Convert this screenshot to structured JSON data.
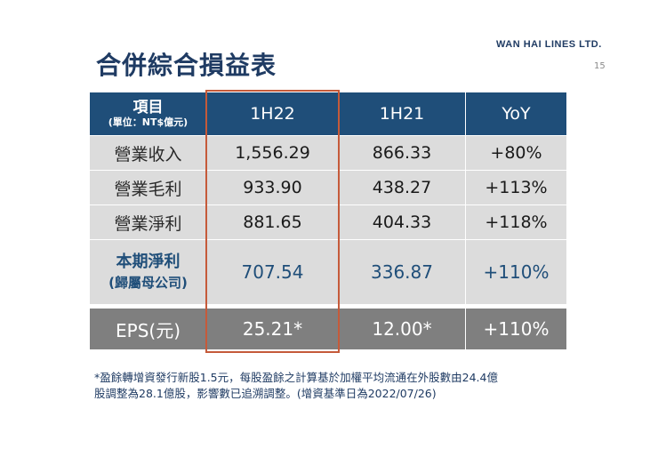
{
  "slide": {
    "title": "合併綜合損益表",
    "logo": "WAN HAI LINES LTD.",
    "page_number": "15"
  },
  "table": {
    "header": {
      "item_label": "項目",
      "item_unit": "(單位：NT$億元)",
      "col_1h22": "1H22",
      "col_1h21": "1H21",
      "col_yoy": "YoY"
    },
    "rows": [
      {
        "label": "營業收入",
        "h22": "1,556.29",
        "h21": "866.33",
        "yoy": "+80%"
      },
      {
        "label": "營業毛利",
        "h22": "933.90",
        "h21": "438.27",
        "yoy": "+113%"
      },
      {
        "label": "營業淨利",
        "h22": "881.65",
        "h21": "404.33",
        "yoy": "+118%"
      }
    ],
    "net_profit": {
      "label": "本期淨利",
      "sublabel": "(歸屬母公司)",
      "h22": "707.54",
      "h21": "336.87",
      "yoy": "+110%"
    },
    "eps": {
      "label": "EPS(元)",
      "h22": "25.21*",
      "h21": "12.00*",
      "yoy": "+110%"
    }
  },
  "footnote": {
    "line1": "*盈餘轉增資發行新股1.5元，每股盈餘之計算基於加權平均流通在外股數由24.4億",
    "line2": "股調整為28.1億股，影響數已追溯調整。(增資基準日為2022/07/26)"
  },
  "colors": {
    "header_bg": "#1f4e79",
    "row_bg": "#dcdcdc",
    "eps_bg": "#7f7f7f",
    "highlight_border": "#c55a3a",
    "title_color": "#1f3b63"
  }
}
